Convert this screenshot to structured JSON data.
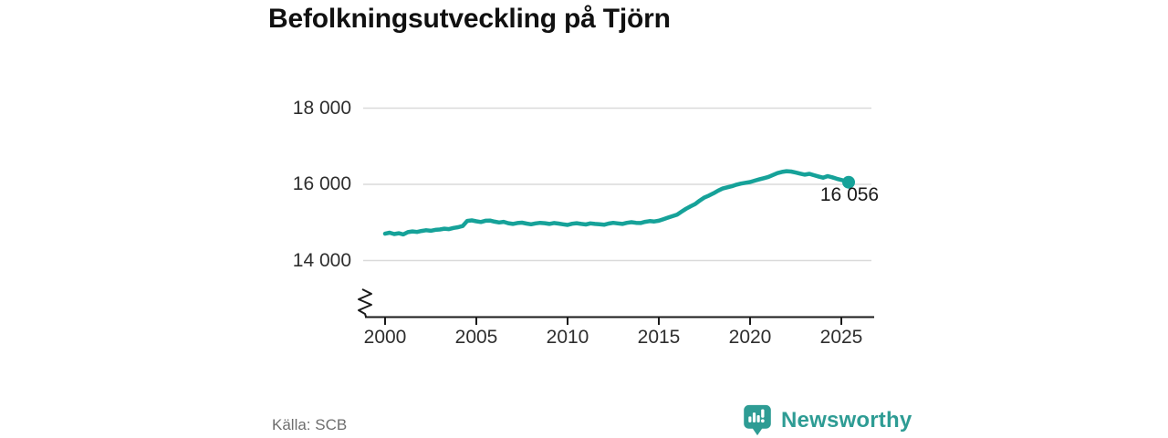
{
  "title": "Befolkningsutveckling på Tjörn",
  "source": "Källa: SCB",
  "branding": {
    "name": "Newsworthy"
  },
  "colors": {
    "line": "#16a299",
    "grid": "#dadada",
    "axis": "#1a1a1a",
    "logo": "#2e9c94",
    "text": "#2e2e2e",
    "muted": "#6e6e6e"
  },
  "chart_data": {
    "type": "line",
    "title": "Befolkningsutveckling på Tjörn",
    "xlabel": "",
    "ylabel": "",
    "grid": true,
    "legend": false,
    "axis_break": true,
    "xlim": [
      1998.8,
      2026.6
    ],
    "ylim": [
      14000,
      18000
    ],
    "x_ticks": [
      2000,
      2005,
      2010,
      2015,
      2020,
      2025
    ],
    "x_tick_labels": [
      "2000",
      "2005",
      "2010",
      "2015",
      "2020",
      "2025"
    ],
    "y_ticks": [
      14000,
      16000,
      18000
    ],
    "y_tick_labels": [
      "14 000",
      "16 000",
      "18 000"
    ],
    "end_label": "16 056",
    "end_value": 16056,
    "series": [
      {
        "name": "Befolkning",
        "points": [
          [
            2000.0,
            14705
          ],
          [
            2000.25,
            14730
          ],
          [
            2000.5,
            14695
          ],
          [
            2000.75,
            14715
          ],
          [
            2001.0,
            14685
          ],
          [
            2001.25,
            14745
          ],
          [
            2001.5,
            14765
          ],
          [
            2001.75,
            14750
          ],
          [
            2002.0,
            14775
          ],
          [
            2002.25,
            14795
          ],
          [
            2002.5,
            14780
          ],
          [
            2002.75,
            14805
          ],
          [
            2003.0,
            14815
          ],
          [
            2003.25,
            14835
          ],
          [
            2003.5,
            14825
          ],
          [
            2003.75,
            14855
          ],
          [
            2004.0,
            14875
          ],
          [
            2004.25,
            14905
          ],
          [
            2004.5,
            15040
          ],
          [
            2004.75,
            15055
          ],
          [
            2005.0,
            15030
          ],
          [
            2005.25,
            15010
          ],
          [
            2005.5,
            15045
          ],
          [
            2005.75,
            15050
          ],
          [
            2006.0,
            15020
          ],
          [
            2006.25,
            15000
          ],
          [
            2006.5,
            15015
          ],
          [
            2006.75,
            14980
          ],
          [
            2007.0,
            14960
          ],
          [
            2007.25,
            14985
          ],
          [
            2007.5,
            14995
          ],
          [
            2007.75,
            14970
          ],
          [
            2008.0,
            14950
          ],
          [
            2008.25,
            14975
          ],
          [
            2008.5,
            14990
          ],
          [
            2008.75,
            14980
          ],
          [
            2009.0,
            14960
          ],
          [
            2009.25,
            14985
          ],
          [
            2009.5,
            14970
          ],
          [
            2009.75,
            14950
          ],
          [
            2010.0,
            14935
          ],
          [
            2010.25,
            14965
          ],
          [
            2010.5,
            14980
          ],
          [
            2010.75,
            14960
          ],
          [
            2011.0,
            14945
          ],
          [
            2011.25,
            14975
          ],
          [
            2011.5,
            14960
          ],
          [
            2011.75,
            14950
          ],
          [
            2012.0,
            14940
          ],
          [
            2012.25,
            14970
          ],
          [
            2012.5,
            14990
          ],
          [
            2012.75,
            14975
          ],
          [
            2013.0,
            14960
          ],
          [
            2013.25,
            14990
          ],
          [
            2013.5,
            15005
          ],
          [
            2013.75,
            14990
          ],
          [
            2014.0,
            14985
          ],
          [
            2014.25,
            15015
          ],
          [
            2014.5,
            15035
          ],
          [
            2014.75,
            15025
          ],
          [
            2015.0,
            15045
          ],
          [
            2015.25,
            15085
          ],
          [
            2015.5,
            15125
          ],
          [
            2015.75,
            15165
          ],
          [
            2016.0,
            15205
          ],
          [
            2016.25,
            15285
          ],
          [
            2016.5,
            15360
          ],
          [
            2016.75,
            15425
          ],
          [
            2017.0,
            15485
          ],
          [
            2017.25,
            15575
          ],
          [
            2017.5,
            15655
          ],
          [
            2017.75,
            15705
          ],
          [
            2018.0,
            15765
          ],
          [
            2018.25,
            15835
          ],
          [
            2018.5,
            15890
          ],
          [
            2018.75,
            15920
          ],
          [
            2019.0,
            15950
          ],
          [
            2019.25,
            15990
          ],
          [
            2019.5,
            16020
          ],
          [
            2019.75,
            16040
          ],
          [
            2020.0,
            16060
          ],
          [
            2020.25,
            16095
          ],
          [
            2020.5,
            16130
          ],
          [
            2020.75,
            16160
          ],
          [
            2021.0,
            16195
          ],
          [
            2021.25,
            16245
          ],
          [
            2021.5,
            16295
          ],
          [
            2021.75,
            16325
          ],
          [
            2022.0,
            16345
          ],
          [
            2022.25,
            16335
          ],
          [
            2022.5,
            16310
          ],
          [
            2022.75,
            16280
          ],
          [
            2023.0,
            16255
          ],
          [
            2023.25,
            16275
          ],
          [
            2023.5,
            16240
          ],
          [
            2023.75,
            16205
          ],
          [
            2024.0,
            16175
          ],
          [
            2024.25,
            16215
          ],
          [
            2024.5,
            16185
          ],
          [
            2024.75,
            16145
          ],
          [
            2025.0,
            16115
          ],
          [
            2025.25,
            16085
          ],
          [
            2025.4,
            16056
          ]
        ]
      }
    ]
  }
}
